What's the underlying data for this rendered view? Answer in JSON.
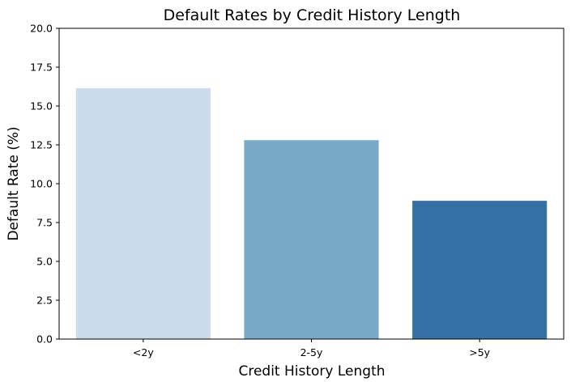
{
  "chart_data": {
    "type": "bar",
    "title": "Default Rates by Credit History Length",
    "xlabel": "Credit History Length",
    "ylabel": "Default Rate (%)",
    "categories": [
      "<2y",
      "2-5y",
      ">5y"
    ],
    "values": [
      16.15,
      12.8,
      8.9
    ],
    "colors": [
      "#cadcec",
      "#78a9c9",
      "#3370a5"
    ],
    "ylim": [
      0,
      20
    ],
    "yticks": [
      0.0,
      2.5,
      5.0,
      7.5,
      10.0,
      12.5,
      15.0,
      17.5,
      20.0
    ],
    "ytick_labels": [
      "0.0",
      "2.5",
      "5.0",
      "7.5",
      "10.0",
      "12.5",
      "15.0",
      "17.5",
      "20.0"
    ],
    "grid": false,
    "legend": "none"
  }
}
